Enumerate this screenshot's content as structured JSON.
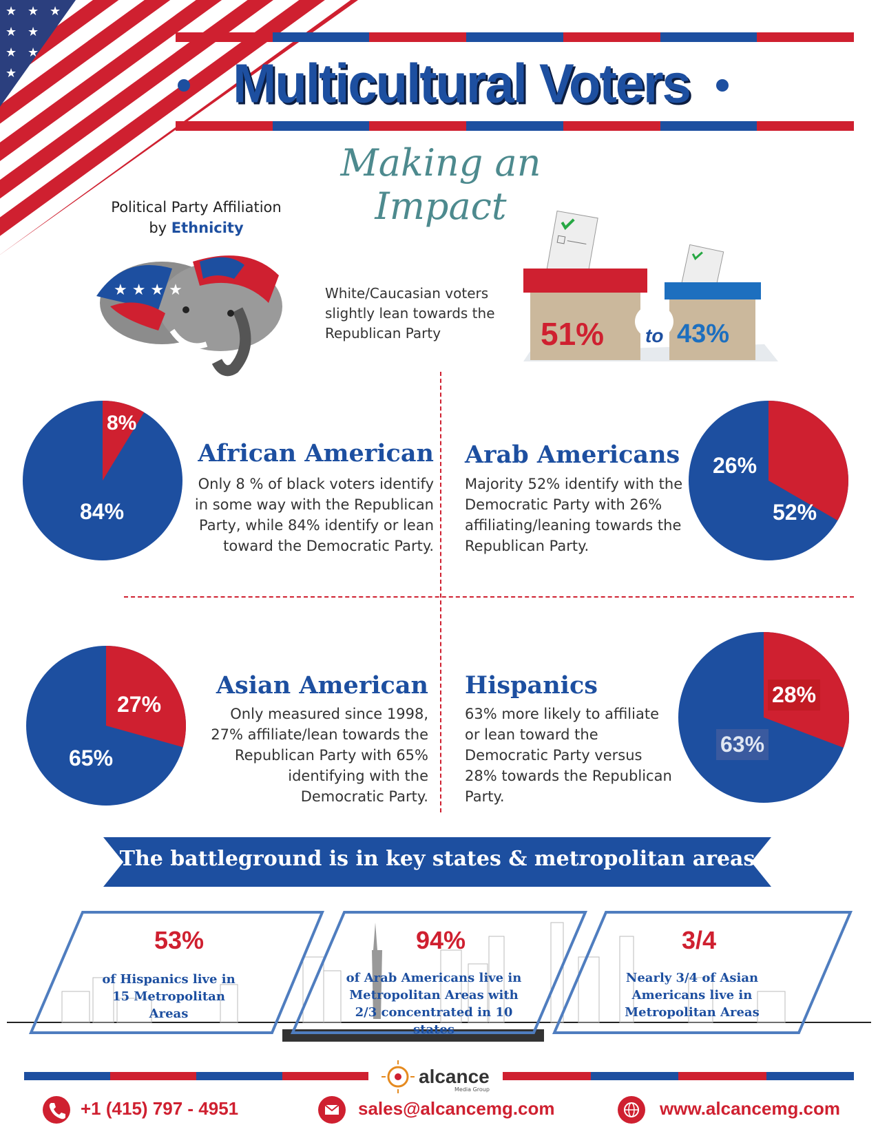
{
  "header": {
    "title": "Multicultural Voters",
    "subtitle": "Making an Impact"
  },
  "intro": {
    "ppa_line1": "Political Party Affiliation",
    "ppa_line2_prefix": "by ",
    "ppa_line2_emph": "Ethnicity",
    "white_text": "White/Caucasian voters slightly lean towards the Republican Party",
    "rep_pct": "51%",
    "to": "to",
    "dem_pct": "43%"
  },
  "sections": {
    "african": {
      "title": "African American",
      "body": "Only 8 % of black voters identify in some way with the Republican Party, while 84% identify or lean toward the Democratic Party.",
      "rep_label": "8%",
      "dem_label": "84%",
      "rep_value": 8,
      "dem_value": 84
    },
    "arab": {
      "title": "Arab Americans",
      "body": "Majority 52% identify with the Democratic Party with 26% affiliating/leaning towards the Republican Party.",
      "rep_label": "26%",
      "dem_label": "52%",
      "rep_value": 26,
      "dem_value": 52
    },
    "asian": {
      "title": "Asian American",
      "body": "Only measured since 1998, 27% affiliate/lean towards the Republican Party with 65% identifying with the Democratic Party.",
      "rep_label": "27%",
      "dem_label": "65%",
      "rep_value": 27,
      "dem_value": 65
    },
    "hispanic": {
      "title": "Hispanics",
      "body": "63% more likely to affiliate or lean toward the Democratic Party versus 28% towards the Republican Party.",
      "rep_label": "28%",
      "dem_label": "63%",
      "rep_value": 28,
      "dem_value": 63
    }
  },
  "battleground": {
    "banner": "The battleground is in key states & metropolitan areas",
    "stats": [
      {
        "num": "53%",
        "text": "of Hispanics live in 15 Metropolitan Areas"
      },
      {
        "num": "94%",
        "text": "of Arab Americans live in Metropolitan Areas with 2/3 concentrated in 10 states"
      },
      {
        "num": "3/4",
        "text": "Nearly 3/4 of Asian Americans live in Metropolitan Areas"
      }
    ]
  },
  "footer": {
    "brand": "alcance",
    "brand_sub": "Media Group",
    "phone": "+1 (415) 797 - 4951",
    "email": "sales@alcancemg.com",
    "website": "www.alcancemg.com"
  },
  "colors": {
    "republican": "#cf2030",
    "democrat": "#1d4fa0"
  }
}
